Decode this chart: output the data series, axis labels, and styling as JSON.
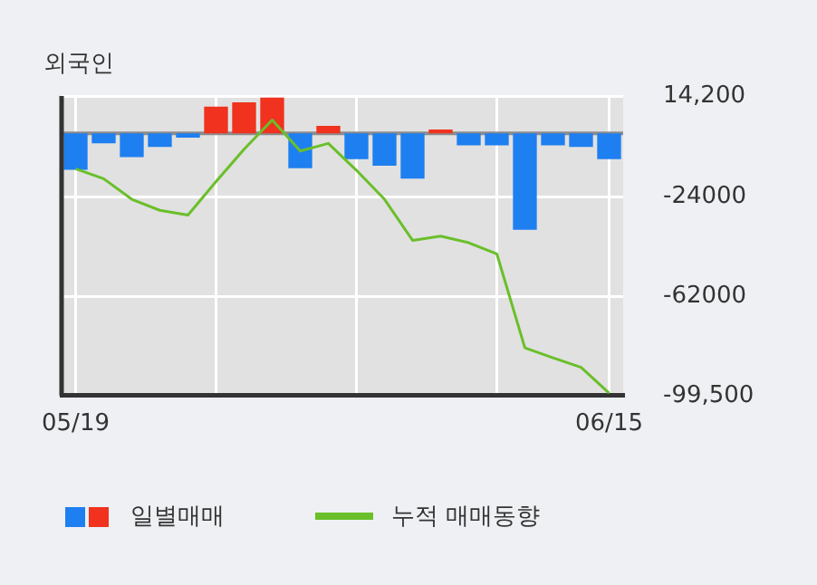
{
  "chart_data": {
    "type": "bar",
    "title": "외국인",
    "categories": [
      "05/19",
      null,
      null,
      null,
      null,
      null,
      null,
      null,
      null,
      null,
      null,
      null,
      null,
      null,
      null,
      null,
      null,
      null,
      null,
      "06/15"
    ],
    "series": [
      {
        "name": "일별매매",
        "colors": [
          "#1e7ff0",
          "#1e7ff0",
          "#1e7ff0",
          "#1e7ff0",
          "#1e7ff0",
          "#f0321e",
          "#f0321e",
          "#f0321e",
          "#1e7ff0",
          "#f0321e",
          "#1e7ff0",
          "#1e7ff0",
          "#1e7ff0",
          "#f0321e",
          "#1e7ff0",
          "#1e7ff0",
          "#1e7ff0",
          "#1e7ff0",
          "#1e7ff0",
          "#1e7ff0"
        ],
        "values": [
          -13800,
          -3800,
          -9000,
          -5100,
          -1600,
          10200,
          11800,
          13600,
          -13200,
          2900,
          -9800,
          -12300,
          -17200,
          1500,
          -4500,
          -4500,
          -36600,
          -4500,
          -5100,
          -9800
        ]
      },
      {
        "name": "누적 매매동향",
        "type": "line",
        "color": "#6abf2a",
        "values": [
          -13400,
          -17200,
          -25000,
          -29200,
          -31000,
          -18300,
          -6000,
          5100,
          -6700,
          -3800,
          -14000,
          -25000,
          -40600,
          -39000,
          -41500,
          -45700,
          -81400,
          -85200,
          -88800,
          -98600
        ]
      }
    ],
    "ylim": [
      -99500,
      14200
    ],
    "yticks": [
      {
        "value": 14200,
        "label": "14,200"
      },
      -24000,
      -62000,
      {
        "value": -99500,
        "label": "-99,500"
      }
    ],
    "ref_lines": [
      {
        "axis": "y",
        "value": 0,
        "color": "#8c8c8c"
      }
    ],
    "grid": true,
    "legend": "bottom",
    "marker": "none",
    "line_style": "solid"
  }
}
